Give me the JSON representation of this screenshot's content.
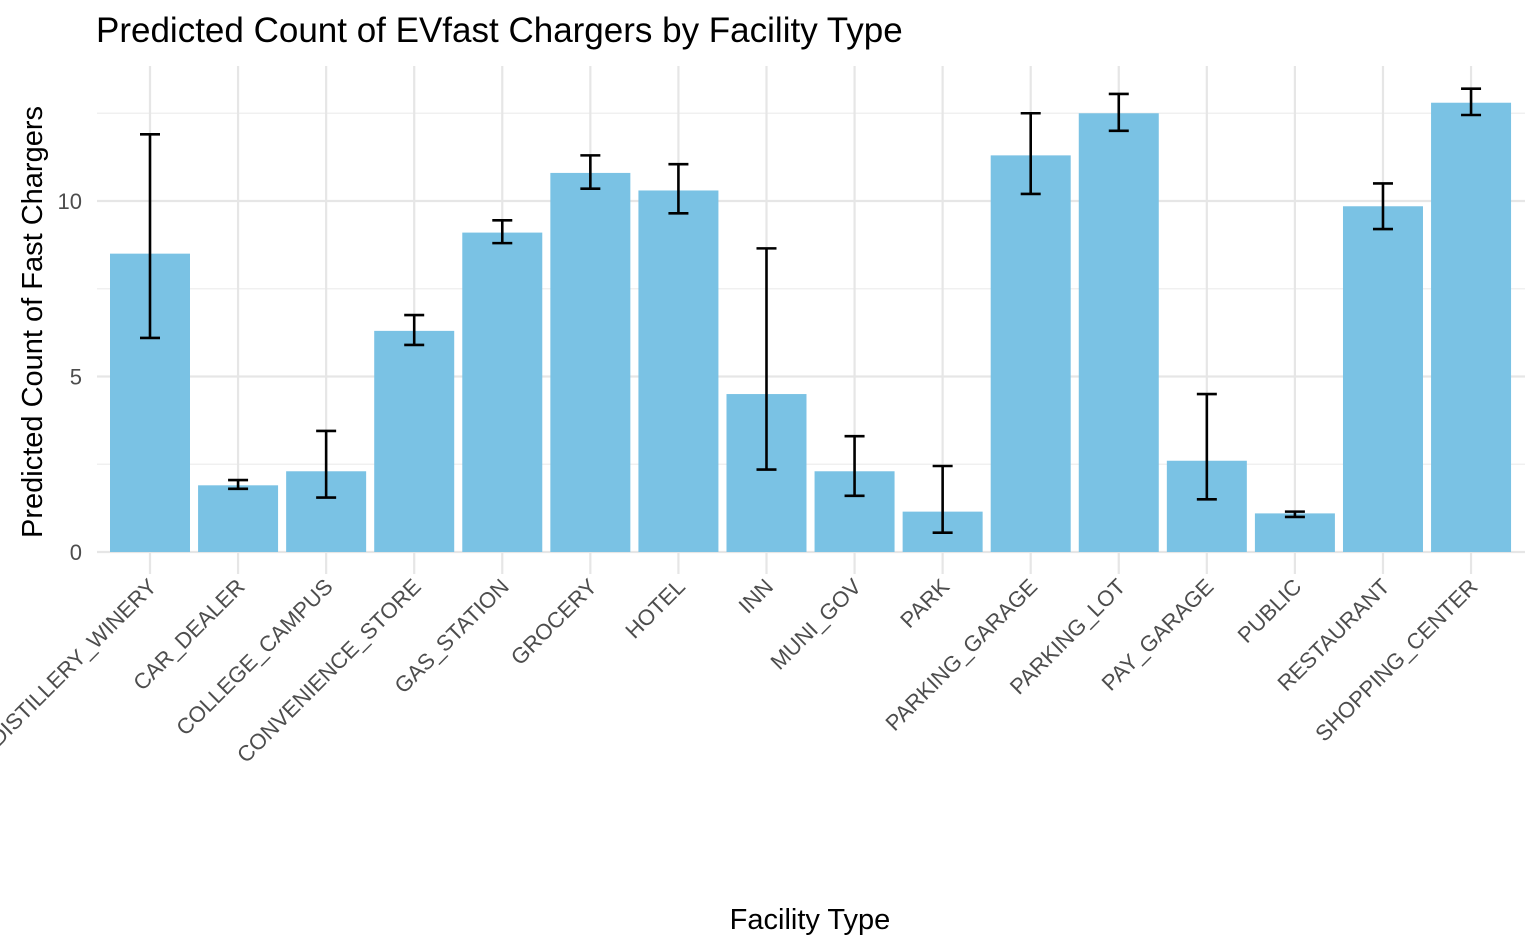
{
  "chart_data": {
    "type": "bar",
    "title": "Predicted Count of EVfast Chargers by Facility Type",
    "xlabel": "Facility Type",
    "ylabel": "Predicted Count of Fast Chargers",
    "ylim": [
      0,
      13.5
    ],
    "yticks": [
      0,
      5,
      10
    ],
    "ytick_labels": [
      "0",
      "5",
      "10"
    ],
    "grid": true,
    "bar_color": "#7ac2e4",
    "error_color": "#000000",
    "categories": [
      "DISTILLERY_WINERY",
      "CAR_DEALER",
      "COLLEGE_CAMPUS",
      "CONVENIENCE_STORE",
      "GAS_STATION",
      "GROCERY",
      "HOTEL",
      "INN",
      "MUNI_GOV",
      "PARK",
      "PARKING_GARAGE",
      "PARKING_LOT",
      "PAY_GARAGE",
      "PUBLIC",
      "RESTAURANT",
      "SHOPPING_CENTER"
    ],
    "values": [
      8.5,
      1.9,
      2.3,
      6.3,
      9.1,
      10.8,
      10.3,
      4.5,
      2.3,
      1.15,
      11.3,
      12.5,
      2.6,
      1.1,
      9.85,
      12.8
    ],
    "lower": [
      6.1,
      1.8,
      1.55,
      5.9,
      8.8,
      10.35,
      9.65,
      2.35,
      1.6,
      0.55,
      10.2,
      12.0,
      1.5,
      1.0,
      9.2,
      12.45
    ],
    "upper": [
      11.9,
      2.05,
      3.45,
      6.75,
      9.45,
      11.3,
      11.05,
      8.65,
      3.3,
      2.45,
      12.5,
      13.05,
      4.5,
      1.15,
      10.5,
      13.2
    ]
  }
}
